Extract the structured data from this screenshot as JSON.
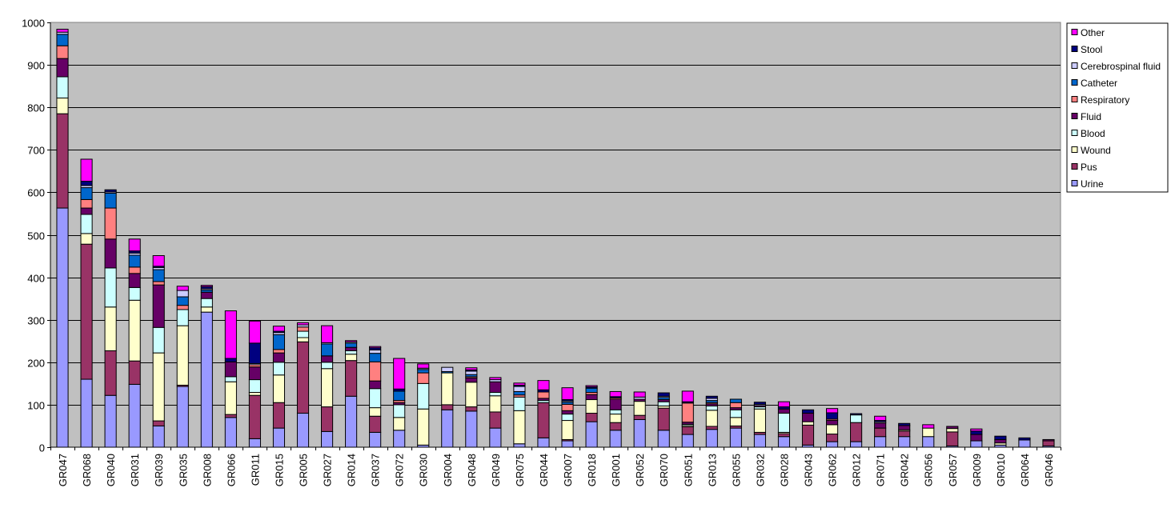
{
  "chart_data": {
    "type": "bar",
    "stacked": true,
    "title": "",
    "xlabel": "",
    "ylabel": "",
    "ylim": [
      0,
      1000
    ],
    "yticks": [
      0,
      100,
      200,
      300,
      400,
      500,
      600,
      700,
      800,
      900,
      1000
    ],
    "grid": true,
    "legend_position": "right",
    "colors": {
      "plot_bg": "#C0C0C0",
      "Urine": "#9999FF",
      "Pus": "#993366",
      "Wound": "#FFFFCC",
      "Blood": "#CCFFFF",
      "Fluid": "#660066",
      "Respiratory": "#FF8080",
      "Catheter": "#0066CC",
      "Cerebrospinal fluid": "#CCCCFF",
      "Stool": "#000080",
      "Other": "#FF00FF"
    },
    "categories": [
      "GR047",
      "GR068",
      "GR040",
      "GR031",
      "GR039",
      "GR035",
      "GR008",
      "GR066",
      "GR011",
      "GR015",
      "GR005",
      "GR027",
      "GR014",
      "GR037",
      "GR072",
      "GR030",
      "GR004",
      "GR048",
      "GR049",
      "GR075",
      "GR044",
      "GR007",
      "GR018",
      "GR001",
      "GR052",
      "GR070",
      "GR051",
      "GR013",
      "GR055",
      "GR032",
      "GR028",
      "GR043",
      "GR062",
      "GR012",
      "GR071",
      "GR042",
      "GR056",
      "GR057",
      "GR009",
      "GR010",
      "GR064",
      "GR046"
    ],
    "series": [
      {
        "name": "Urine",
        "values": [
          563,
          160,
          122,
          148,
          50,
          143,
          318,
          70,
          20,
          45,
          80,
          37,
          120,
          35,
          40,
          5,
          88,
          85,
          45,
          8,
          22,
          15,
          60,
          40,
          65,
          40,
          30,
          42,
          45,
          30,
          25,
          5,
          13,
          13,
          25,
          25,
          25,
          3,
          15,
          5,
          17,
          3
        ]
      },
      {
        "name": "Pus",
        "values": [
          222,
          318,
          105,
          55,
          12,
          3,
          0,
          7,
          102,
          60,
          168,
          58,
          84,
          38,
          0,
          0,
          12,
          10,
          38,
          0,
          83,
          3,
          20,
          18,
          10,
          52,
          18,
          7,
          5,
          5,
          7,
          47,
          18,
          45,
          20,
          13,
          0,
          33,
          0,
          0,
          0,
          12
        ]
      },
      {
        "name": "Wound",
        "values": [
          37,
          25,
          103,
          143,
          160,
          140,
          12,
          77,
          7,
          65,
          10,
          90,
          15,
          20,
          30,
          85,
          75,
          58,
          38,
          78,
          0,
          45,
          32,
          20,
          33,
          5,
          3,
          38,
          20,
          55,
          3,
          8,
          22,
          0,
          0,
          3,
          20,
          8,
          0,
          5,
          0,
          0
        ]
      },
      {
        "name": "Blood",
        "values": [
          50,
          45,
          92,
          30,
          60,
          38,
          20,
          12,
          30,
          30,
          15,
          15,
          8,
          45,
          30,
          60,
          0,
          0,
          8,
          32,
          5,
          15,
          0,
          10,
          0,
          10,
          3,
          10,
          18,
          5,
          45,
          0,
          0,
          18,
          0,
          0,
          0,
          0,
          0,
          0,
          0,
          0
        ]
      },
      {
        "name": "Fluid",
        "values": [
          43,
          15,
          68,
          33,
          100,
          0,
          15,
          35,
          30,
          22,
          0,
          15,
          8,
          18,
          5,
          0,
          0,
          10,
          25,
          0,
          5,
          8,
          12,
          25,
          5,
          5,
          5,
          5,
          5,
          3,
          10,
          20,
          10,
          0,
          12,
          10,
          0,
          5,
          15,
          8,
          0,
          3
        ]
      },
      {
        "name": "Respiratory",
        "values": [
          30,
          20,
          73,
          15,
          8,
          10,
          0,
          0,
          5,
          8,
          10,
          0,
          0,
          45,
          5,
          25,
          0,
          3,
          0,
          5,
          15,
          15,
          5,
          3,
          0,
          0,
          45,
          3,
          12,
          0,
          0,
          0,
          3,
          0,
          0,
          0,
          0,
          0,
          0,
          0,
          0,
          0
        ]
      },
      {
        "name": "Catheter",
        "values": [
          27,
          28,
          35,
          28,
          28,
          20,
          5,
          0,
          0,
          35,
          0,
          28,
          10,
          20,
          22,
          8,
          3,
          5,
          0,
          8,
          0,
          5,
          10,
          0,
          0,
          5,
          0,
          5,
          8,
          0,
          0,
          0,
          0,
          0,
          0,
          0,
          0,
          0,
          0,
          0,
          0,
          0
        ]
      },
      {
        "name": "Cerebrospinal fluid",
        "values": [
          5,
          5,
          3,
          5,
          5,
          15,
          3,
          0,
          3,
          5,
          5,
          3,
          3,
          8,
          0,
          3,
          10,
          8,
          5,
          12,
          0,
          3,
          0,
          0,
          5,
          3,
          0,
          5,
          0,
          3,
          0,
          0,
          0,
          0,
          3,
          0,
          0,
          0,
          0,
          0,
          0,
          0
        ]
      },
      {
        "name": "Stool",
        "values": [
          0,
          10,
          5,
          5,
          3,
          0,
          5,
          8,
          48,
          3,
          0,
          0,
          0,
          5,
          5,
          0,
          0,
          3,
          0,
          3,
          5,
          3,
          3,
          3,
          0,
          8,
          3,
          5,
          0,
          5,
          5,
          8,
          15,
          3,
          3,
          5,
          0,
          0,
          8,
          8,
          5,
          0
        ]
      },
      {
        "name": "Other",
        "values": [
          7,
          52,
          0,
          28,
          25,
          10,
          3,
          112,
          52,
          12,
          5,
          40,
          3,
          3,
          72,
          10,
          0,
          5,
          5,
          5,
          22,
          28,
          3,
          12,
          12,
          0,
          25,
          0,
          0,
          0,
          12,
          0,
          10,
          0,
          10,
          0,
          8,
          0,
          5,
          0,
          0,
          0
        ]
      }
    ]
  }
}
